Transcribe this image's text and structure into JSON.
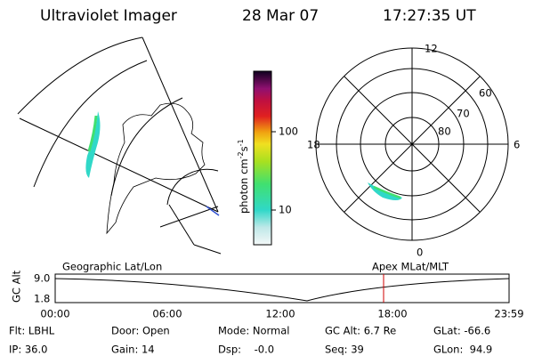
{
  "header": {
    "title": "Ultraviolet Imager",
    "date": "28 Mar 07",
    "time": "17:27:35 UT"
  },
  "colorbar": {
    "label": {
      "base": "photon cm",
      "exp1": "-2",
      "unit2": "s",
      "exp2": "-1"
    },
    "ticks": [
      "100",
      "10"
    ]
  },
  "polar": {
    "mlt_labels": [
      "12",
      "6",
      "18",
      "0"
    ],
    "lat_labels": [
      "60",
      "70",
      "80"
    ]
  },
  "timeline": {
    "left_title": "Geographic Lat/Lon",
    "right_title": "Apex MLat/MLT",
    "y_label": "GC Alt",
    "y_ticks": [
      "9.0",
      "1.8"
    ],
    "x_ticks": [
      "00:00",
      "06:00",
      "12:00",
      "18:00",
      "23:59"
    ]
  },
  "footer": {
    "rows": [
      [
        "Flt: LBHL",
        "Door: Open",
        "Mode: Normal",
        "GC Alt: 6.7 Re",
        "GLat: -66.6"
      ],
      [
        "IP: 36.0",
        "Gain: 14",
        "Dsp:    -0.0",
        "Seq: 39",
        "GLon:  94.9"
      ]
    ]
  }
}
